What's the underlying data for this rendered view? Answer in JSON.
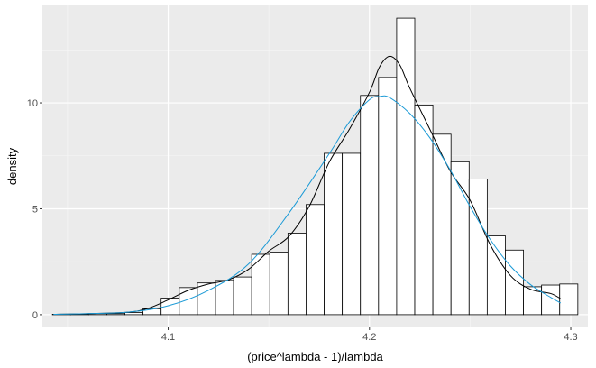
{
  "chart_data": {
    "type": "histogram",
    "title": "",
    "xlabel": "(price^lambda - 1)/lambda",
    "ylabel": "density",
    "xlim": [
      4.0375,
      4.3085
    ],
    "ylim": [
      -0.6,
      14.6
    ],
    "x_ticks": [
      4.1,
      4.2,
      4.3
    ],
    "x_tick_labels": [
      "4.1",
      "4.2",
      "4.3"
    ],
    "y_ticks": [
      0,
      5,
      10
    ],
    "y_tick_labels": [
      "0",
      "5",
      "10"
    ],
    "x_minor_ticks": [
      4.05,
      4.15,
      4.25
    ],
    "y_minor_ticks": [
      2.5,
      7.5,
      12.5
    ],
    "bins": {
      "edges": [
        4.0425,
        4.0515,
        4.0605,
        4.0695,
        4.0785,
        4.0875,
        4.0965,
        4.1055,
        4.1145,
        4.1235,
        4.1325,
        4.1415,
        4.1505,
        4.1595,
        4.1685,
        4.1775,
        4.1865,
        4.1955,
        4.2045,
        4.2135,
        4.2225,
        4.2315,
        4.2405,
        4.2495,
        4.2585,
        4.2675,
        4.2765,
        4.2855,
        4.2945,
        4.3035
      ],
      "density": [
        0.02,
        0.02,
        0.05,
        0.05,
        0.1,
        0.28,
        0.78,
        1.28,
        1.5,
        1.62,
        1.78,
        2.85,
        2.95,
        3.85,
        5.2,
        7.62,
        7.62,
        10.35,
        11.2,
        14.0,
        9.9,
        8.52,
        7.22,
        6.4,
        3.72,
        3.05,
        1.32,
        1.4,
        1.45,
        0.2
      ]
    },
    "series": [
      {
        "kind": "density",
        "color": "#000000",
        "x": [
          4.043,
          4.06,
          4.08,
          4.09,
          4.1,
          4.11,
          4.12,
          4.13,
          4.14,
          4.15,
          4.16,
          4.17,
          4.18,
          4.19,
          4.2,
          4.205,
          4.21,
          4.215,
          4.22,
          4.23,
          4.24,
          4.25,
          4.26,
          4.27,
          4.28,
          4.29,
          4.295
        ],
        "y": [
          0.02,
          0.05,
          0.12,
          0.3,
          0.7,
          1.15,
          1.45,
          1.65,
          2.15,
          3.0,
          3.7,
          5.1,
          7.2,
          8.75,
          10.5,
          11.7,
          12.2,
          11.8,
          10.7,
          8.75,
          6.8,
          5.4,
          3.3,
          1.85,
          1.2,
          1.0,
          0.75
        ]
      },
      {
        "kind": "normal",
        "color": "#1b9ad6",
        "x": [
          4.043,
          4.06,
          4.08,
          4.1,
          4.12,
          4.14,
          4.16,
          4.18,
          4.19,
          4.2,
          4.205,
          4.21,
          4.22,
          4.23,
          4.24,
          4.25,
          4.26,
          4.27,
          4.28,
          4.29,
          4.295
        ],
        "y": [
          0.02,
          0.05,
          0.12,
          0.42,
          1.15,
          2.4,
          4.8,
          7.6,
          9.1,
          10.15,
          10.3,
          10.25,
          9.5,
          8.35,
          6.85,
          5.1,
          3.55,
          2.3,
          1.42,
          0.82,
          0.55
        ]
      }
    ],
    "grid": true,
    "background": "#ebebeb",
    "legend": "none"
  }
}
